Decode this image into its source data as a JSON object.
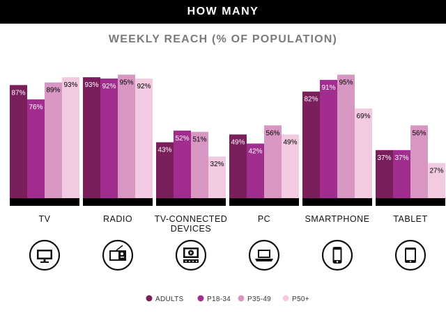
{
  "header": {
    "title": "HOW MANY"
  },
  "colors": {
    "adults": "#7b1f5c",
    "p18_34": "#a12e8e",
    "p35_49": "#d896c3",
    "p50plus": "#f2cbe2",
    "baseline": "#000000",
    "subtitle": "#7a7a7a"
  },
  "chart_data": {
    "type": "bar",
    "title": "WEEKLY REACH (% OF POPULATION)",
    "categories": [
      "TV",
      "RADIO",
      "TV-CONNECTED DEVICES",
      "PC",
      "SMARTPHONE",
      "TABLET"
    ],
    "category_lines": [
      [
        "TV"
      ],
      [
        "RADIO"
      ],
      [
        "TV-CONNECTED",
        "DEVICES"
      ],
      [
        "PC"
      ],
      [
        "SMARTPHONE"
      ],
      [
        "TABLET"
      ]
    ],
    "category_icons": [
      "tv-icon",
      "radio-icon",
      "tv-connected-device-icon",
      "laptop-icon",
      "smartphone-icon",
      "tablet-icon"
    ],
    "series": [
      {
        "name": "ADULTS",
        "values": [
          87,
          93,
          43,
          49,
          82,
          37
        ]
      },
      {
        "name": "P18-34",
        "values": [
          76,
          92,
          52,
          42,
          91,
          37
        ]
      },
      {
        "name": "P35-49",
        "values": [
          89,
          95,
          51,
          56,
          95,
          56
        ]
      },
      {
        "name": "P50+",
        "values": [
          93,
          92,
          32,
          49,
          69,
          27
        ]
      }
    ],
    "value_suffix": "%",
    "ylim": [
      0,
      100
    ],
    "grid": false,
    "legend": "bottom-center"
  }
}
